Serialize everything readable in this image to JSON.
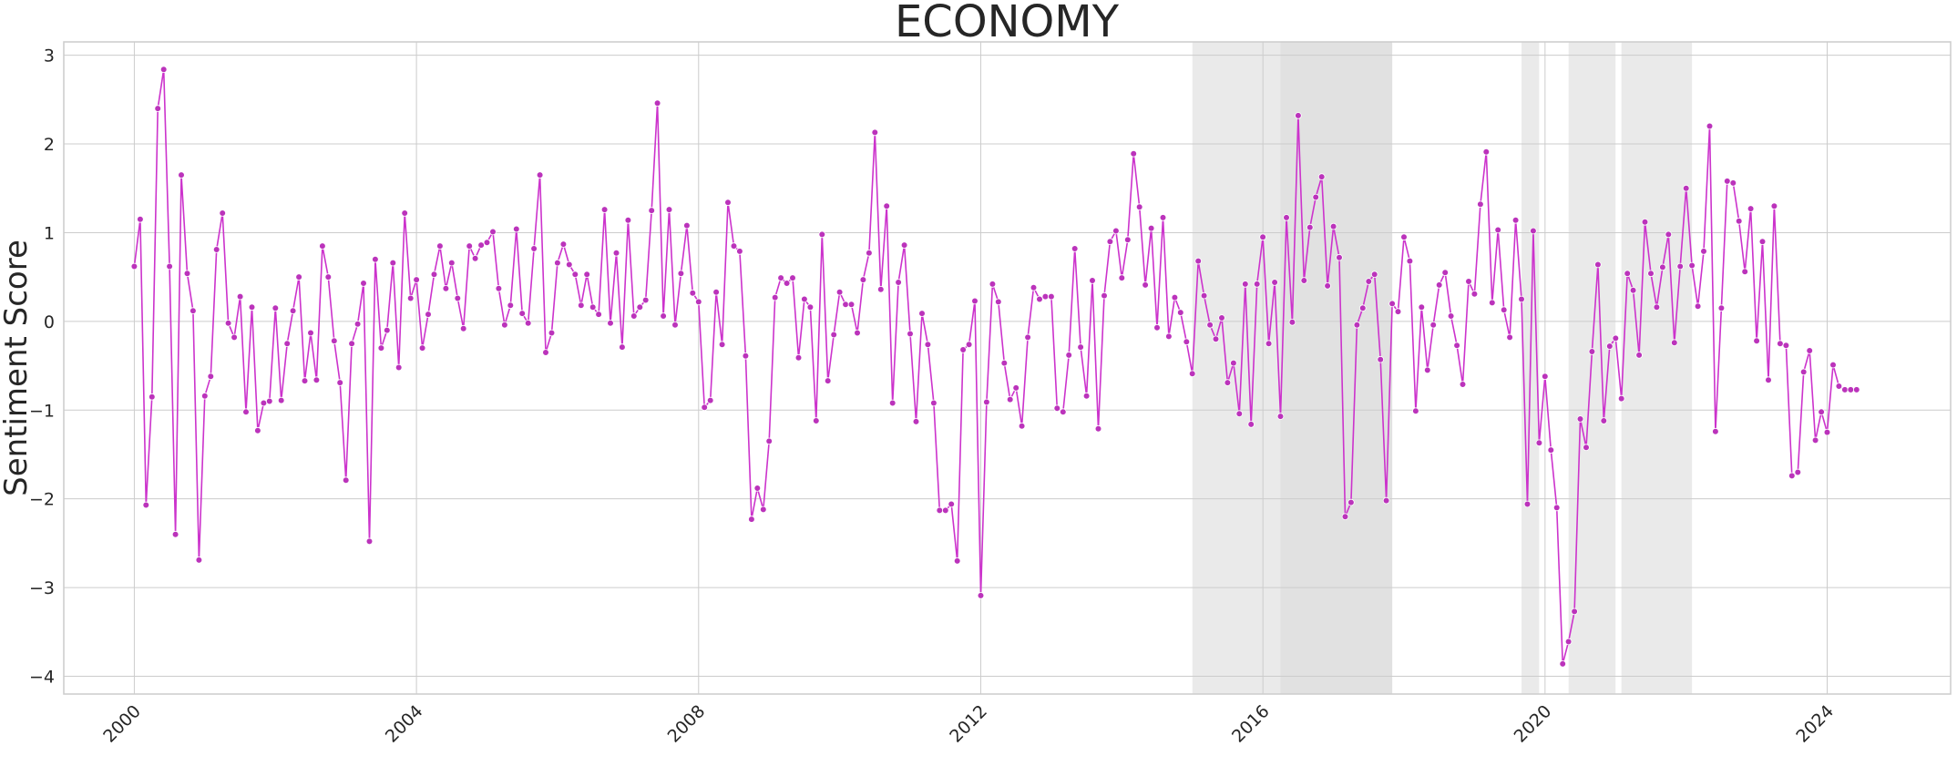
{
  "chart_data": {
    "type": "line",
    "title": "ECONOMY",
    "xlabel": "",
    "ylabel": "Sentiment Score",
    "xlim": [
      "1999-01",
      "2025-10"
    ],
    "ylim": [
      -4.2,
      3.15
    ],
    "x_ticks": [
      "2000",
      "2004",
      "2008",
      "2012",
      "2016",
      "2020",
      "2024"
    ],
    "y_ticks": [
      "3",
      "2",
      "1",
      "0",
      "−1",
      "−2",
      "−3",
      "−4"
    ],
    "grid": true,
    "legend": "none",
    "colors": {
      "line": "#cc33cc",
      "marker": "#bb33bb",
      "shade": "#d9d9d9",
      "shade_dark": "#bdbdbd",
      "grid": "#cccccc"
    },
    "shaded_regions": [
      {
        "start": "2015-01",
        "end": "2017-11"
      },
      {
        "start": "2016-04",
        "end": "2017-11"
      },
      {
        "start": "2019-09",
        "end": "2019-12"
      },
      {
        "start": "2020-05",
        "end": "2021-01"
      },
      {
        "start": "2021-02",
        "end": "2022-02"
      }
    ],
    "start": "2000-01",
    "frequency": "monthly",
    "values": [
      0.62,
      1.15,
      -2.07,
      -0.85,
      2.4,
      2.84,
      0.62,
      -2.4,
      1.65,
      0.54,
      0.12,
      -2.69,
      -0.84,
      -0.62,
      0.81,
      1.22,
      -0.02,
      -0.18,
      0.28,
      -1.02,
      0.16,
      -1.23,
      -0.92,
      -0.9,
      0.15,
      -0.89,
      -0.25,
      0.12,
      0.5,
      -0.67,
      -0.13,
      -0.66,
      0.85,
      0.5,
      -0.22,
      -0.69,
      -1.79,
      -0.25,
      -0.03,
      0.43,
      -2.48,
      0.7,
      -0.3,
      -0.1,
      0.66,
      -0.52,
      1.22,
      0.26,
      0.47,
      -0.3,
      0.08,
      0.53,
      0.85,
      0.37,
      0.66,
      0.26,
      -0.08,
      0.85,
      0.71,
      0.86,
      0.89,
      1.01,
      0.37,
      -0.04,
      0.18,
      1.04,
      0.09,
      -0.02,
      0.82,
      1.65,
      -0.35,
      -0.13,
      0.66,
      0.87,
      0.64,
      0.53,
      0.18,
      0.53,
      0.16,
      0.08,
      1.26,
      -0.02,
      0.77,
      -0.29,
      1.14,
      0.06,
      0.16,
      0.24,
      1.25,
      2.46,
      0.06,
      1.26,
      -0.04,
      0.54,
      1.08,
      0.32,
      0.22,
      -0.97,
      -0.89,
      0.33,
      -0.26,
      1.34,
      0.85,
      0.79,
      -0.39,
      -2.23,
      -1.88,
      -2.12,
      -1.35,
      0.27,
      0.49,
      0.43,
      0.49,
      -0.41,
      0.25,
      0.16,
      -1.12,
      0.98,
      -0.67,
      -0.15,
      0.33,
      0.19,
      0.19,
      -0.13,
      0.47,
      0.77,
      2.13,
      0.36,
      1.3,
      -0.92,
      0.44,
      0.86,
      -0.14,
      -1.13,
      0.09,
      -0.26,
      -0.92,
      -2.13,
      -2.13,
      -2.06,
      -2.7,
      -0.32,
      -0.26,
      0.23,
      -3.09,
      -0.91,
      0.42,
      0.22,
      -0.47,
      -0.88,
      -0.75,
      -1.18,
      -0.18,
      0.38,
      0.25,
      0.28,
      0.28,
      -0.98,
      -1.02,
      -0.38,
      0.82,
      -0.29,
      -0.84,
      0.46,
      -1.21,
      0.29,
      0.9,
      1.02,
      0.49,
      0.92,
      1.89,
      1.29,
      0.41,
      1.05,
      -0.07,
      1.17,
      -0.17,
      0.27,
      0.1,
      -0.23,
      -0.59,
      0.68,
      0.29,
      -0.04,
      -0.2,
      0.04,
      -0.69,
      -0.47,
      -1.04,
      0.42,
      -1.16,
      0.42,
      0.95,
      -0.25,
      0.44,
      -1.07,
      1.17,
      -0.01,
      2.32,
      0.46,
      1.06,
      1.4,
      1.63,
      0.4,
      1.07,
      0.72,
      -2.2,
      -2.04,
      -0.04,
      0.15,
      0.45,
      0.53,
      -0.43,
      -2.02,
      0.2,
      0.11,
      0.95,
      0.68,
      -1.01,
      0.16,
      -0.55,
      -0.04,
      0.41,
      0.55,
      0.06,
      -0.27,
      -0.71,
      0.45,
      0.31,
      1.32,
      1.91,
      0.21,
      1.03,
      0.13,
      -0.18,
      1.14,
      0.25,
      -2.06,
      1.02,
      -1.37,
      -0.62,
      -1.45,
      -2.1,
      -3.86,
      -3.61,
      -3.27,
      -1.1,
      -1.42,
      -0.34,
      0.64,
      -1.12,
      -0.28,
      -0.19,
      -0.87,
      0.54,
      0.35,
      -0.38,
      1.12,
      0.54,
      0.16,
      0.61,
      0.98,
      -0.24,
      0.62,
      1.5,
      0.63,
      0.17,
      0.79,
      2.2,
      -1.24,
      0.15,
      1.58,
      1.56,
      1.13,
      0.56,
      1.27,
      -0.22,
      0.9,
      -0.66,
      1.3,
      -0.25,
      -0.27,
      -1.74,
      -1.7,
      -0.57,
      -0.33,
      -1.34,
      -1.02,
      -1.25,
      -0.49,
      -0.73,
      -0.77,
      -0.77,
      -0.77
    ]
  }
}
